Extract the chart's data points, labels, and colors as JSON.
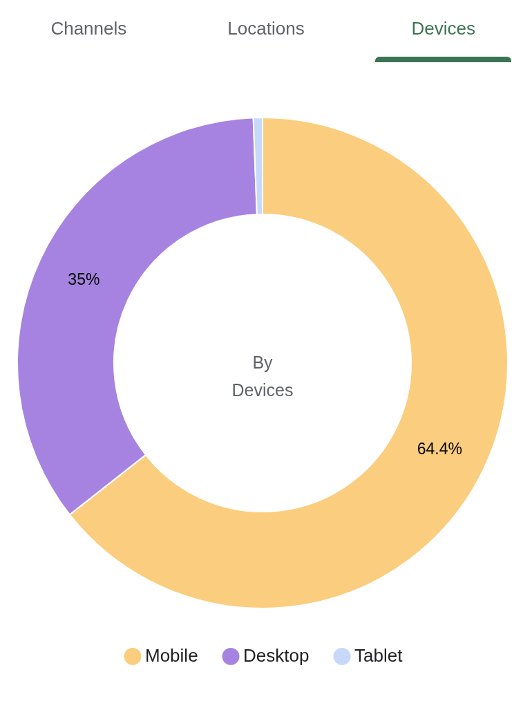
{
  "chart_data": {
    "type": "donut",
    "title": "By Devices",
    "annotations": [
      "Channels",
      "Locations",
      "Devices"
    ],
    "categories": [
      "Mobile",
      "Desktop",
      "Tablet"
    ],
    "values": [
      64.4,
      35,
      0.6
    ],
    "value_labels": [
      "64.4%",
      "35%",
      null
    ],
    "colors": [
      "#fbcd7e",
      "#a683e0",
      "#c6d9fb"
    ],
    "legend": "bottom"
  }
}
